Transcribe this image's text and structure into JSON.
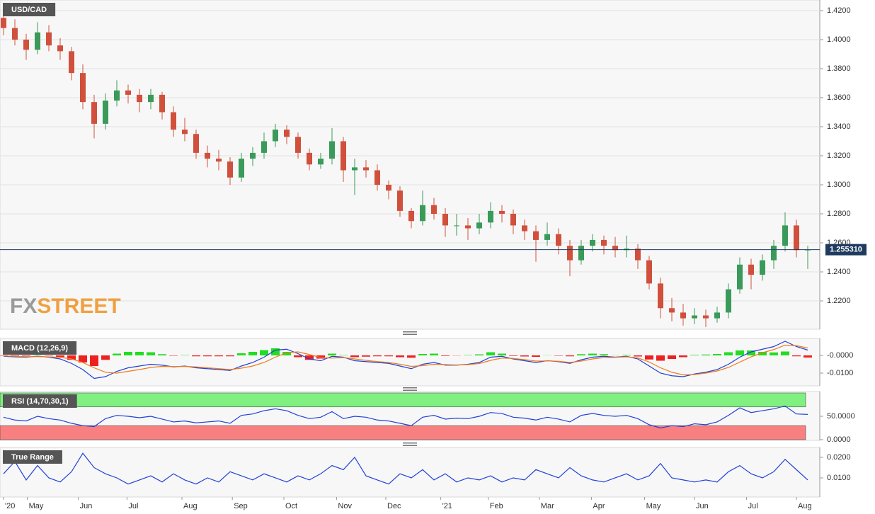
{
  "chart_data": [
    {
      "type": "candlestick",
      "title": "USD/CAD",
      "logo": [
        "FX",
        "STREET"
      ],
      "logo_colors": [
        "#9a9a9a",
        "#f0a040"
      ],
      "up_color": "#3a9a5a",
      "down_color": "#d0503c",
      "grid": true,
      "ylim": [
        1.2005,
        1.4273
      ],
      "yticks": [
        {
          "value": 1.22,
          "label": "1.2200"
        },
        {
          "value": 1.24,
          "label": "1.2400"
        },
        {
          "value": 1.26,
          "label": "1.2600"
        },
        {
          "value": 1.28,
          "label": "1.2800"
        },
        {
          "value": 1.3,
          "label": "1.3000"
        },
        {
          "value": 1.32,
          "label": "1.3200"
        },
        {
          "value": 1.34,
          "label": "1.3400"
        },
        {
          "value": 1.36,
          "label": "1.3600"
        },
        {
          "value": 1.38,
          "label": "1.3800"
        },
        {
          "value": 1.4,
          "label": "1.4000"
        },
        {
          "value": 1.42,
          "label": "1.4200"
        }
      ],
      "last_price": {
        "value": 1.25531,
        "label": "1.255310"
      },
      "last_color": "#1e3a5f",
      "ohlc": [
        [
          1.415,
          1.421,
          1.403,
          1.408
        ],
        [
          1.408,
          1.414,
          1.396,
          1.4
        ],
        [
          1.4,
          1.404,
          1.386,
          1.393
        ],
        [
          1.393,
          1.412,
          1.39,
          1.405
        ],
        [
          1.405,
          1.41,
          1.392,
          1.396
        ],
        [
          1.396,
          1.401,
          1.386,
          1.392
        ],
        [
          1.392,
          1.395,
          1.372,
          1.377
        ],
        [
          1.377,
          1.383,
          1.352,
          1.357
        ],
        [
          1.357,
          1.362,
          1.332,
          1.342
        ],
        [
          1.342,
          1.363,
          1.338,
          1.358
        ],
        [
          1.358,
          1.372,
          1.354,
          1.365
        ],
        [
          1.365,
          1.369,
          1.356,
          1.362
        ],
        [
          1.362,
          1.366,
          1.35,
          1.357
        ],
        [
          1.357,
          1.366,
          1.352,
          1.362
        ],
        [
          1.362,
          1.364,
          1.345,
          1.35
        ],
        [
          1.35,
          1.354,
          1.333,
          1.338
        ],
        [
          1.338,
          1.346,
          1.33,
          1.335
        ],
        [
          1.335,
          1.338,
          1.318,
          1.322
        ],
        [
          1.322,
          1.327,
          1.312,
          1.318
        ],
        [
          1.318,
          1.324,
          1.31,
          1.316
        ],
        [
          1.316,
          1.319,
          1.3,
          1.305
        ],
        [
          1.305,
          1.322,
          1.302,
          1.318
        ],
        [
          1.318,
          1.326,
          1.313,
          1.322
        ],
        [
          1.322,
          1.336,
          1.318,
          1.33
        ],
        [
          1.33,
          1.342,
          1.326,
          1.338
        ],
        [
          1.338,
          1.341,
          1.328,
          1.333
        ],
        [
          1.333,
          1.336,
          1.318,
          1.322
        ],
        [
          1.322,
          1.325,
          1.31,
          1.314
        ],
        [
          1.314,
          1.322,
          1.311,
          1.318
        ],
        [
          1.318,
          1.339,
          1.314,
          1.33
        ],
        [
          1.33,
          1.333,
          1.302,
          1.31
        ],
        [
          1.31,
          1.318,
          1.293,
          1.312
        ],
        [
          1.312,
          1.317,
          1.305,
          1.31
        ],
        [
          1.31,
          1.314,
          1.296,
          1.3
        ],
        [
          1.3,
          1.303,
          1.29,
          1.296
        ],
        [
          1.296,
          1.299,
          1.278,
          1.282
        ],
        [
          1.282,
          1.284,
          1.27,
          1.275
        ],
        [
          1.275,
          1.296,
          1.272,
          1.286
        ],
        [
          1.286,
          1.291,
          1.276,
          1.28
        ],
        [
          1.28,
          1.284,
          1.264,
          1.272
        ],
        [
          1.272,
          1.28,
          1.265,
          1.272
        ],
        [
          1.272,
          1.277,
          1.262,
          1.27
        ],
        [
          1.27,
          1.28,
          1.266,
          1.274
        ],
        [
          1.274,
          1.288,
          1.27,
          1.282
        ],
        [
          1.282,
          1.286,
          1.274,
          1.28
        ],
        [
          1.28,
          1.283,
          1.266,
          1.272
        ],
        [
          1.272,
          1.276,
          1.262,
          1.268
        ],
        [
          1.268,
          1.272,
          1.247,
          1.262
        ],
        [
          1.262,
          1.274,
          1.258,
          1.266
        ],
        [
          1.266,
          1.27,
          1.252,
          1.258
        ],
        [
          1.258,
          1.262,
          1.237,
          1.248
        ],
        [
          1.248,
          1.262,
          1.245,
          1.258
        ],
        [
          1.258,
          1.266,
          1.254,
          1.262
        ],
        [
          1.262,
          1.265,
          1.252,
          1.258
        ],
        [
          1.258,
          1.264,
          1.25,
          1.255
        ],
        [
          1.255,
          1.265,
          1.25,
          1.256
        ],
        [
          1.256,
          1.259,
          1.242,
          1.248
        ],
        [
          1.248,
          1.251,
          1.228,
          1.232
        ],
        [
          1.232,
          1.236,
          1.208,
          1.215
        ],
        [
          1.215,
          1.222,
          1.206,
          1.212
        ],
        [
          1.212,
          1.218,
          1.203,
          1.208
        ],
        [
          1.208,
          1.215,
          1.204,
          1.21
        ],
        [
          1.21,
          1.214,
          1.202,
          1.208
        ],
        [
          1.208,
          1.216,
          1.205,
          1.212
        ],
        [
          1.212,
          1.232,
          1.208,
          1.228
        ],
        [
          1.228,
          1.25,
          1.225,
          1.245
        ],
        [
          1.245,
          1.249,
          1.228,
          1.238
        ],
        [
          1.238,
          1.252,
          1.234,
          1.248
        ],
        [
          1.248,
          1.262,
          1.242,
          1.258
        ],
        [
          1.258,
          1.281,
          1.254,
          1.272
        ],
        [
          1.272,
          1.276,
          1.25,
          1.255
        ],
        [
          1.255,
          1.258,
          1.242,
          1.2553
        ]
      ]
    },
    {
      "type": "macd",
      "title": "MACD (12,26,9)",
      "grid": false,
      "ylim": [
        -0.0172,
        0.0096
      ],
      "yticks": [
        {
          "value": 0,
          "label": "-0.0000"
        },
        {
          "value": -0.01,
          "label": "-0.0100"
        }
      ],
      "series": [
        {
          "color": "#2040d8",
          "values": [
            -0.0005,
            -0.0008,
            -0.001,
            -0.0005,
            -0.001,
            -0.002,
            -0.0045,
            -0.008,
            -0.013,
            -0.012,
            -0.009,
            -0.007,
            -0.006,
            -0.005,
            -0.0055,
            -0.0065,
            -0.006,
            -0.007,
            -0.0075,
            -0.008,
            -0.0085,
            -0.006,
            -0.004,
            -0.001,
            0.003,
            0.0035,
            0.001,
            -0.002,
            -0.003,
            -0.0005,
            -0.001,
            -0.003,
            -0.0035,
            -0.004,
            -0.0045,
            -0.006,
            -0.0075,
            -0.005,
            -0.004,
            -0.0055,
            -0.0055,
            -0.005,
            -0.004,
            -0.001,
            -0.0005,
            -0.002,
            -0.003,
            -0.004,
            -0.003,
            -0.0035,
            -0.0045,
            -0.0025,
            -0.001,
            -0.0005,
            -0.001,
            -0.0005,
            -0.002,
            -0.006,
            -0.01,
            -0.0115,
            -0.012,
            -0.0105,
            -0.0095,
            -0.008,
            -0.005,
            -0.001,
            0.002,
            0.0035,
            0.005,
            0.008,
            0.005,
            0.003
          ]
        },
        {
          "color": "#f07a1a",
          "values": [
            -0.0003,
            -0.0005,
            -0.0007,
            -0.0007,
            -0.0008,
            -0.0011,
            -0.002,
            -0.004,
            -0.007,
            -0.0095,
            -0.01,
            -0.009,
            -0.008,
            -0.0068,
            -0.0062,
            -0.0063,
            -0.0062,
            -0.0065,
            -0.007,
            -0.0075,
            -0.008,
            -0.0072,
            -0.006,
            -0.004,
            -0.001,
            0.0015,
            0.002,
            0.0005,
            -0.0012,
            -0.0015,
            -0.0012,
            -0.002,
            -0.0028,
            -0.0035,
            -0.004,
            -0.005,
            -0.0062,
            -0.0058,
            -0.005,
            -0.0052,
            -0.0054,
            -0.0052,
            -0.0046,
            -0.0028,
            -0.0015,
            -0.0017,
            -0.0024,
            -0.0032,
            -0.0031,
            -0.0033,
            -0.004,
            -0.0032,
            -0.002,
            -0.0012,
            -0.0011,
            -0.0008,
            -0.0014,
            -0.0037,
            -0.007,
            -0.0095,
            -0.011,
            -0.0108,
            -0.01,
            -0.0088,
            -0.0068,
            -0.0038,
            -0.0008,
            0.0015,
            0.0033,
            0.0058,
            0.0055,
            0.0042
          ]
        }
      ],
      "histogram": {
        "up_color": "#22dd22",
        "down_color": "#ee2020",
        "values": [
          -0.0002,
          -0.0003,
          -0.0003,
          0.0002,
          -0.0002,
          -0.0009,
          -0.0025,
          -0.004,
          -0.006,
          -0.0025,
          0.001,
          0.002,
          0.002,
          0.0018,
          0.0007,
          -0.0002,
          0.0002,
          -0.0005,
          -0.0005,
          -0.0005,
          -0.0005,
          0.0012,
          0.002,
          0.003,
          0.004,
          0.002,
          -0.001,
          -0.0025,
          -0.0018,
          0.001,
          0.0002,
          -0.001,
          -0.0007,
          -0.0005,
          -0.0005,
          -0.001,
          -0.0013,
          0.0008,
          0.001,
          -0.0003,
          -0.0001,
          0.0002,
          0.0006,
          0.0018,
          0.001,
          -0.0003,
          -0.0006,
          -0.0008,
          0.0001,
          -0.0002,
          -0.0005,
          0.0007,
          0.001,
          0.0007,
          0.0001,
          0.0003,
          -0.0006,
          -0.0023,
          -0.003,
          -0.002,
          -0.001,
          0.0003,
          0.0005,
          0.0008,
          0.0018,
          0.0028,
          0.0028,
          0.002,
          0.0017,
          0.0022,
          -0.0005,
          -0.0012
        ]
      }
    },
    {
      "type": "line",
      "title": "RSI (14,70,30,1)",
      "grid": false,
      "ylim": [
        -1.5,
        103
      ],
      "yticks": [
        {
          "value": 50,
          "label": "50.0000"
        },
        {
          "value": 0,
          "label": "0.0000"
        }
      ],
      "bands": [
        {
          "from": 70,
          "to": 100,
          "color": "#80f080"
        },
        {
          "from": 0,
          "to": 30,
          "color": "#f88080"
        }
      ],
      "series": [
        {
          "color": "#2040d8",
          "values": [
            48,
            42,
            40,
            50,
            45,
            42,
            35,
            30,
            28,
            45,
            52,
            50,
            47,
            50,
            44,
            38,
            40,
            36,
            38,
            40,
            35,
            52,
            55,
            62,
            66,
            62,
            52,
            45,
            48,
            60,
            45,
            50,
            48,
            42,
            40,
            35,
            30,
            48,
            52,
            44,
            46,
            45,
            50,
            58,
            56,
            48,
            46,
            42,
            48,
            44,
            38,
            52,
            56,
            52,
            50,
            52,
            45,
            32,
            25,
            30,
            28,
            34,
            32,
            38,
            52,
            68,
            58,
            62,
            66,
            72,
            55,
            54
          ]
        }
      ]
    },
    {
      "type": "line",
      "title": "True Range",
      "grid": false,
      "ylim": [
        0.0007,
        0.0248
      ],
      "yticks": [
        {
          "value": 0.02,
          "label": "0.0200"
        },
        {
          "value": 0.01,
          "label": "0.0100"
        }
      ],
      "series": [
        {
          "color": "#2040d8",
          "values": [
            0.012,
            0.018,
            0.009,
            0.016,
            0.01,
            0.008,
            0.013,
            0.022,
            0.015,
            0.012,
            0.01,
            0.007,
            0.009,
            0.011,
            0.008,
            0.012,
            0.009,
            0.007,
            0.01,
            0.008,
            0.013,
            0.011,
            0.009,
            0.012,
            0.01,
            0.008,
            0.011,
            0.009,
            0.012,
            0.016,
            0.014,
            0.02,
            0.011,
            0.009,
            0.007,
            0.012,
            0.01,
            0.014,
            0.009,
            0.012,
            0.008,
            0.01,
            0.009,
            0.011,
            0.008,
            0.01,
            0.009,
            0.014,
            0.012,
            0.01,
            0.015,
            0.011,
            0.009,
            0.008,
            0.01,
            0.012,
            0.009,
            0.011,
            0.017,
            0.01,
            0.009,
            0.008,
            0.009,
            0.008,
            0.013,
            0.016,
            0.012,
            0.01,
            0.013,
            0.019,
            0.014,
            0.009
          ]
        }
      ],
      "xticks": [
        {
          "value": 0,
          "label": "'20"
        },
        {
          "value": 2.1,
          "label": "May"
        },
        {
          "value": 6.6,
          "label": "Jun"
        },
        {
          "value": 10.9,
          "label": "Jul"
        },
        {
          "value": 15.75,
          "label": "Aug"
        },
        {
          "value": 20.2,
          "label": "Sep"
        },
        {
          "value": 24.75,
          "label": "Oct"
        },
        {
          "value": 29.4,
          "label": "Nov"
        },
        {
          "value": 33.75,
          "label": "Dec"
        },
        {
          "value": 38.6,
          "label": "'21"
        },
        {
          "value": 42.8,
          "label": "Feb"
        },
        {
          "value": 47.3,
          "label": "Mar"
        },
        {
          "value": 51.9,
          "label": "Apr"
        },
        {
          "value": 56.6,
          "label": "May"
        },
        {
          "value": 61,
          "label": "Jun"
        },
        {
          "value": 65.6,
          "label": "Jul"
        },
        {
          "value": 70,
          "label": "Aug"
        }
      ]
    }
  ]
}
